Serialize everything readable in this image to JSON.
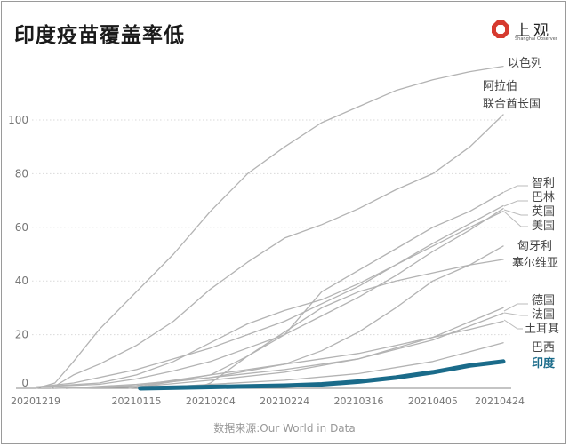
{
  "header": {
    "title": "印度疫苗覆盖率低",
    "logo_text": "上观",
    "logo_sub": "Shanghai Observer"
  },
  "source": "数据来源:Our World in Data",
  "colors": {
    "grey_line": "#b3b3b3",
    "india": "#1a6b8a",
    "grid": "#d9d9d9",
    "text": "#444444"
  },
  "chart_data": {
    "type": "line",
    "title": "印度疫苗覆盖率低",
    "xlabel": "",
    "ylabel": "",
    "xlim": [
      "2020-12-19",
      "2021-04-24"
    ],
    "ylim": [
      0,
      110
    ],
    "yticks": [
      0,
      20,
      40,
      60,
      80,
      100
    ],
    "xtick_labels": [
      "20201219",
      "20210115",
      "20210204",
      "20210224",
      "20210316",
      "20210405",
      "20210424"
    ],
    "xtick_dates": [
      "2020-12-19",
      "2021-01-15",
      "2021-02-04",
      "2021-02-24",
      "2021-03-16",
      "2021-04-05",
      "2021-04-24"
    ],
    "grid": "horizontal-dotted",
    "legend": "inline-right",
    "series": [
      {
        "name": "以色列",
        "highlight": false,
        "x": [
          "2020-12-19",
          "2020-12-24",
          "2020-12-29",
          "2021-01-05",
          "2021-01-15",
          "2021-01-25",
          "2021-02-04",
          "2021-02-14",
          "2021-02-24",
          "2021-03-06",
          "2021-03-16",
          "2021-03-26",
          "2021-04-05",
          "2021-04-15",
          "2021-04-24"
        ],
        "y": [
          0,
          2,
          10,
          22,
          36,
          50,
          66,
          80,
          90,
          99,
          105,
          111,
          115,
          118,
          120
        ]
      },
      {
        "name": "阿拉伯联合酋长国",
        "highlight": false,
        "x": [
          "2020-12-23",
          "2020-12-29",
          "2021-01-05",
          "2021-01-15",
          "2021-01-25",
          "2021-02-04",
          "2021-02-14",
          "2021-02-24",
          "2021-03-06",
          "2021-03-16",
          "2021-03-26",
          "2021-04-05",
          "2021-04-15",
          "2021-04-24"
        ],
        "y": [
          0,
          5,
          9,
          16,
          25,
          37,
          47,
          56,
          61,
          67,
          74,
          80,
          90,
          102
        ]
      },
      {
        "name": "智利",
        "highlight": false,
        "x": [
          "2020-12-24",
          "2021-01-15",
          "2021-02-02",
          "2021-02-04",
          "2021-02-14",
          "2021-02-24",
          "2021-03-06",
          "2021-03-16",
          "2021-03-26",
          "2021-04-05",
          "2021-04-15",
          "2021-04-24"
        ],
        "y": [
          0,
          0.5,
          1,
          2,
          12,
          20,
          36,
          44,
          52,
          60,
          66,
          73
        ]
      },
      {
        "name": "巴林",
        "highlight": false,
        "x": [
          "2020-12-19",
          "2020-12-29",
          "2021-01-15",
          "2021-02-04",
          "2021-02-24",
          "2021-03-16",
          "2021-04-05",
          "2021-04-24"
        ],
        "y": [
          0.5,
          2,
          7,
          15,
          25,
          38,
          54,
          68
        ]
      },
      {
        "name": "英国",
        "highlight": false,
        "x": [
          "2020-12-19",
          "2021-01-05",
          "2021-01-15",
          "2021-01-25",
          "2021-02-04",
          "2021-02-14",
          "2021-02-24",
          "2021-03-06",
          "2021-03-16",
          "2021-03-26",
          "2021-04-05",
          "2021-04-15",
          "2021-04-24"
        ],
        "y": [
          0.5,
          2,
          5,
          10,
          17,
          24,
          29,
          33,
          39,
          46,
          53,
          60,
          66
        ]
      },
      {
        "name": "美国",
        "highlight": false,
        "x": [
          "2020-12-19",
          "2021-01-05",
          "2021-01-15",
          "2021-01-25",
          "2021-02-04",
          "2021-02-14",
          "2021-02-24",
          "2021-03-06",
          "2021-03-16",
          "2021-03-26",
          "2021-04-05",
          "2021-04-15",
          "2021-04-24"
        ],
        "y": [
          0.5,
          1.5,
          3.5,
          6.5,
          10,
          15,
          20,
          27,
          34,
          42,
          51,
          59,
          67
        ]
      },
      {
        "name": "匈牙利",
        "highlight": false,
        "x": [
          "2020-12-27",
          "2021-01-15",
          "2021-02-04",
          "2021-02-24",
          "2021-03-06",
          "2021-03-16",
          "2021-03-26",
          "2021-04-05",
          "2021-04-15",
          "2021-04-24"
        ],
        "y": [
          0,
          1,
          4,
          9,
          14,
          21,
          30,
          40,
          46,
          53
        ]
      },
      {
        "name": "塞尔维亚",
        "highlight": false,
        "x": [
          "2020-12-24",
          "2021-01-15",
          "2021-02-04",
          "2021-02-14",
          "2021-02-24",
          "2021-03-06",
          "2021-03-16",
          "2021-03-26",
          "2021-04-05",
          "2021-04-15",
          "2021-04-24"
        ],
        "y": [
          0,
          1,
          5,
          12,
          21,
          30,
          36,
          40,
          43,
          46,
          48
        ]
      },
      {
        "name": "德国",
        "highlight": false,
        "x": [
          "2020-12-27",
          "2021-01-15",
          "2021-02-04",
          "2021-02-24",
          "2021-03-16",
          "2021-04-05",
          "2021-04-24"
        ],
        "y": [
          0,
          1.5,
          4,
          7,
          11,
          19,
          30
        ]
      },
      {
        "name": "法国",
        "highlight": false,
        "x": [
          "2020-12-27",
          "2021-01-15",
          "2021-02-04",
          "2021-02-24",
          "2021-03-16",
          "2021-04-05",
          "2021-04-24"
        ],
        "y": [
          0,
          0.5,
          3,
          6,
          11,
          18,
          28
        ]
      },
      {
        "name": "土耳其",
        "highlight": false,
        "x": [
          "2021-01-13",
          "2021-01-25",
          "2021-02-04",
          "2021-02-14",
          "2021-02-24",
          "2021-03-06",
          "2021-03-16",
          "2021-03-26",
          "2021-04-05",
          "2021-04-15",
          "2021-04-24"
        ],
        "y": [
          0,
          2.5,
          5,
          7,
          9,
          11,
          13,
          16,
          19,
          22,
          25
        ]
      },
      {
        "name": "巴西",
        "highlight": false,
        "x": [
          "2021-01-17",
          "2021-02-04",
          "2021-02-24",
          "2021-03-16",
          "2021-04-05",
          "2021-04-24"
        ],
        "y": [
          0,
          1.5,
          3,
          5.5,
          10,
          17
        ]
      },
      {
        "name": "印度",
        "highlight": true,
        "x": [
          "2021-01-16",
          "2021-02-04",
          "2021-02-24",
          "2021-03-06",
          "2021-03-16",
          "2021-03-26",
          "2021-04-05",
          "2021-04-15",
          "2021-04-24"
        ],
        "y": [
          0,
          0.5,
          1,
          1.5,
          2.5,
          4,
          6,
          8.5,
          10
        ]
      }
    ]
  }
}
